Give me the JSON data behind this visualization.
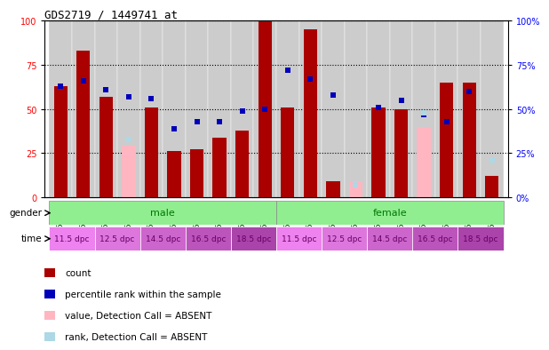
{
  "title": "GDS2719 / 1449741_at",
  "samples": [
    "GSM158596",
    "GSM158599",
    "GSM158602",
    "GSM158604",
    "GSM158606",
    "GSM158607",
    "GSM158608",
    "GSM158609",
    "GSM158610",
    "GSM158611",
    "GSM158616",
    "GSM158618",
    "GSM158620",
    "GSM158621",
    "GSM158622",
    "GSM158624",
    "GSM158625",
    "GSM158626",
    "GSM158628",
    "GSM158630"
  ],
  "red_bars": [
    63,
    83,
    57,
    0,
    51,
    26,
    27,
    34,
    38,
    100,
    51,
    95,
    9,
    0,
    51,
    50,
    0,
    65,
    65,
    12
  ],
  "blue_squares": [
    63,
    66,
    61,
    57,
    56,
    39,
    43,
    43,
    49,
    50,
    72,
    67,
    58,
    null,
    51,
    55,
    47,
    43,
    60,
    null
  ],
  "pink_bars": [
    null,
    null,
    null,
    29,
    null,
    null,
    null,
    null,
    null,
    null,
    null,
    null,
    null,
    9,
    null,
    null,
    40,
    null,
    null,
    12
  ],
  "lightblue_squares": [
    null,
    null,
    null,
    33,
    null,
    null,
    null,
    null,
    null,
    null,
    null,
    null,
    null,
    7,
    null,
    null,
    48,
    null,
    null,
    21
  ],
  "red_color": "#AA0000",
  "blue_color": "#0000BB",
  "pink_color": "#FFB6C1",
  "lightblue_color": "#ADD8E6",
  "green_color": "#90EE90",
  "gender_divider": 9.5,
  "time_blocks": [
    [
      "11.5 dpc",
      -0.5,
      1.5,
      "#EE82EE"
    ],
    [
      "12.5 dpc",
      1.5,
      3.5,
      "#DD77DD"
    ],
    [
      "14.5 dpc",
      3.5,
      5.5,
      "#CC66CC"
    ],
    [
      "16.5 dpc",
      5.5,
      7.5,
      "#BB55BB"
    ],
    [
      "18.5 dpc",
      7.5,
      9.5,
      "#AA44AA"
    ],
    [
      "11.5 dpc",
      9.5,
      11.5,
      "#EE82EE"
    ],
    [
      "12.5 dpc",
      11.5,
      13.5,
      "#DD77DD"
    ],
    [
      "14.5 dpc",
      13.5,
      15.5,
      "#CC66CC"
    ],
    [
      "16.5 dpc",
      15.5,
      17.5,
      "#BB55BB"
    ],
    [
      "18.5 dpc",
      17.5,
      19.5,
      "#AA44AA"
    ]
  ],
  "legend_labels": [
    "count",
    "percentile rank within the sample",
    "value, Detection Call = ABSENT",
    "rank, Detection Call = ABSENT"
  ],
  "legend_colors": [
    "#AA0000",
    "#0000BB",
    "#FFB6C1",
    "#ADD8E6"
  ]
}
